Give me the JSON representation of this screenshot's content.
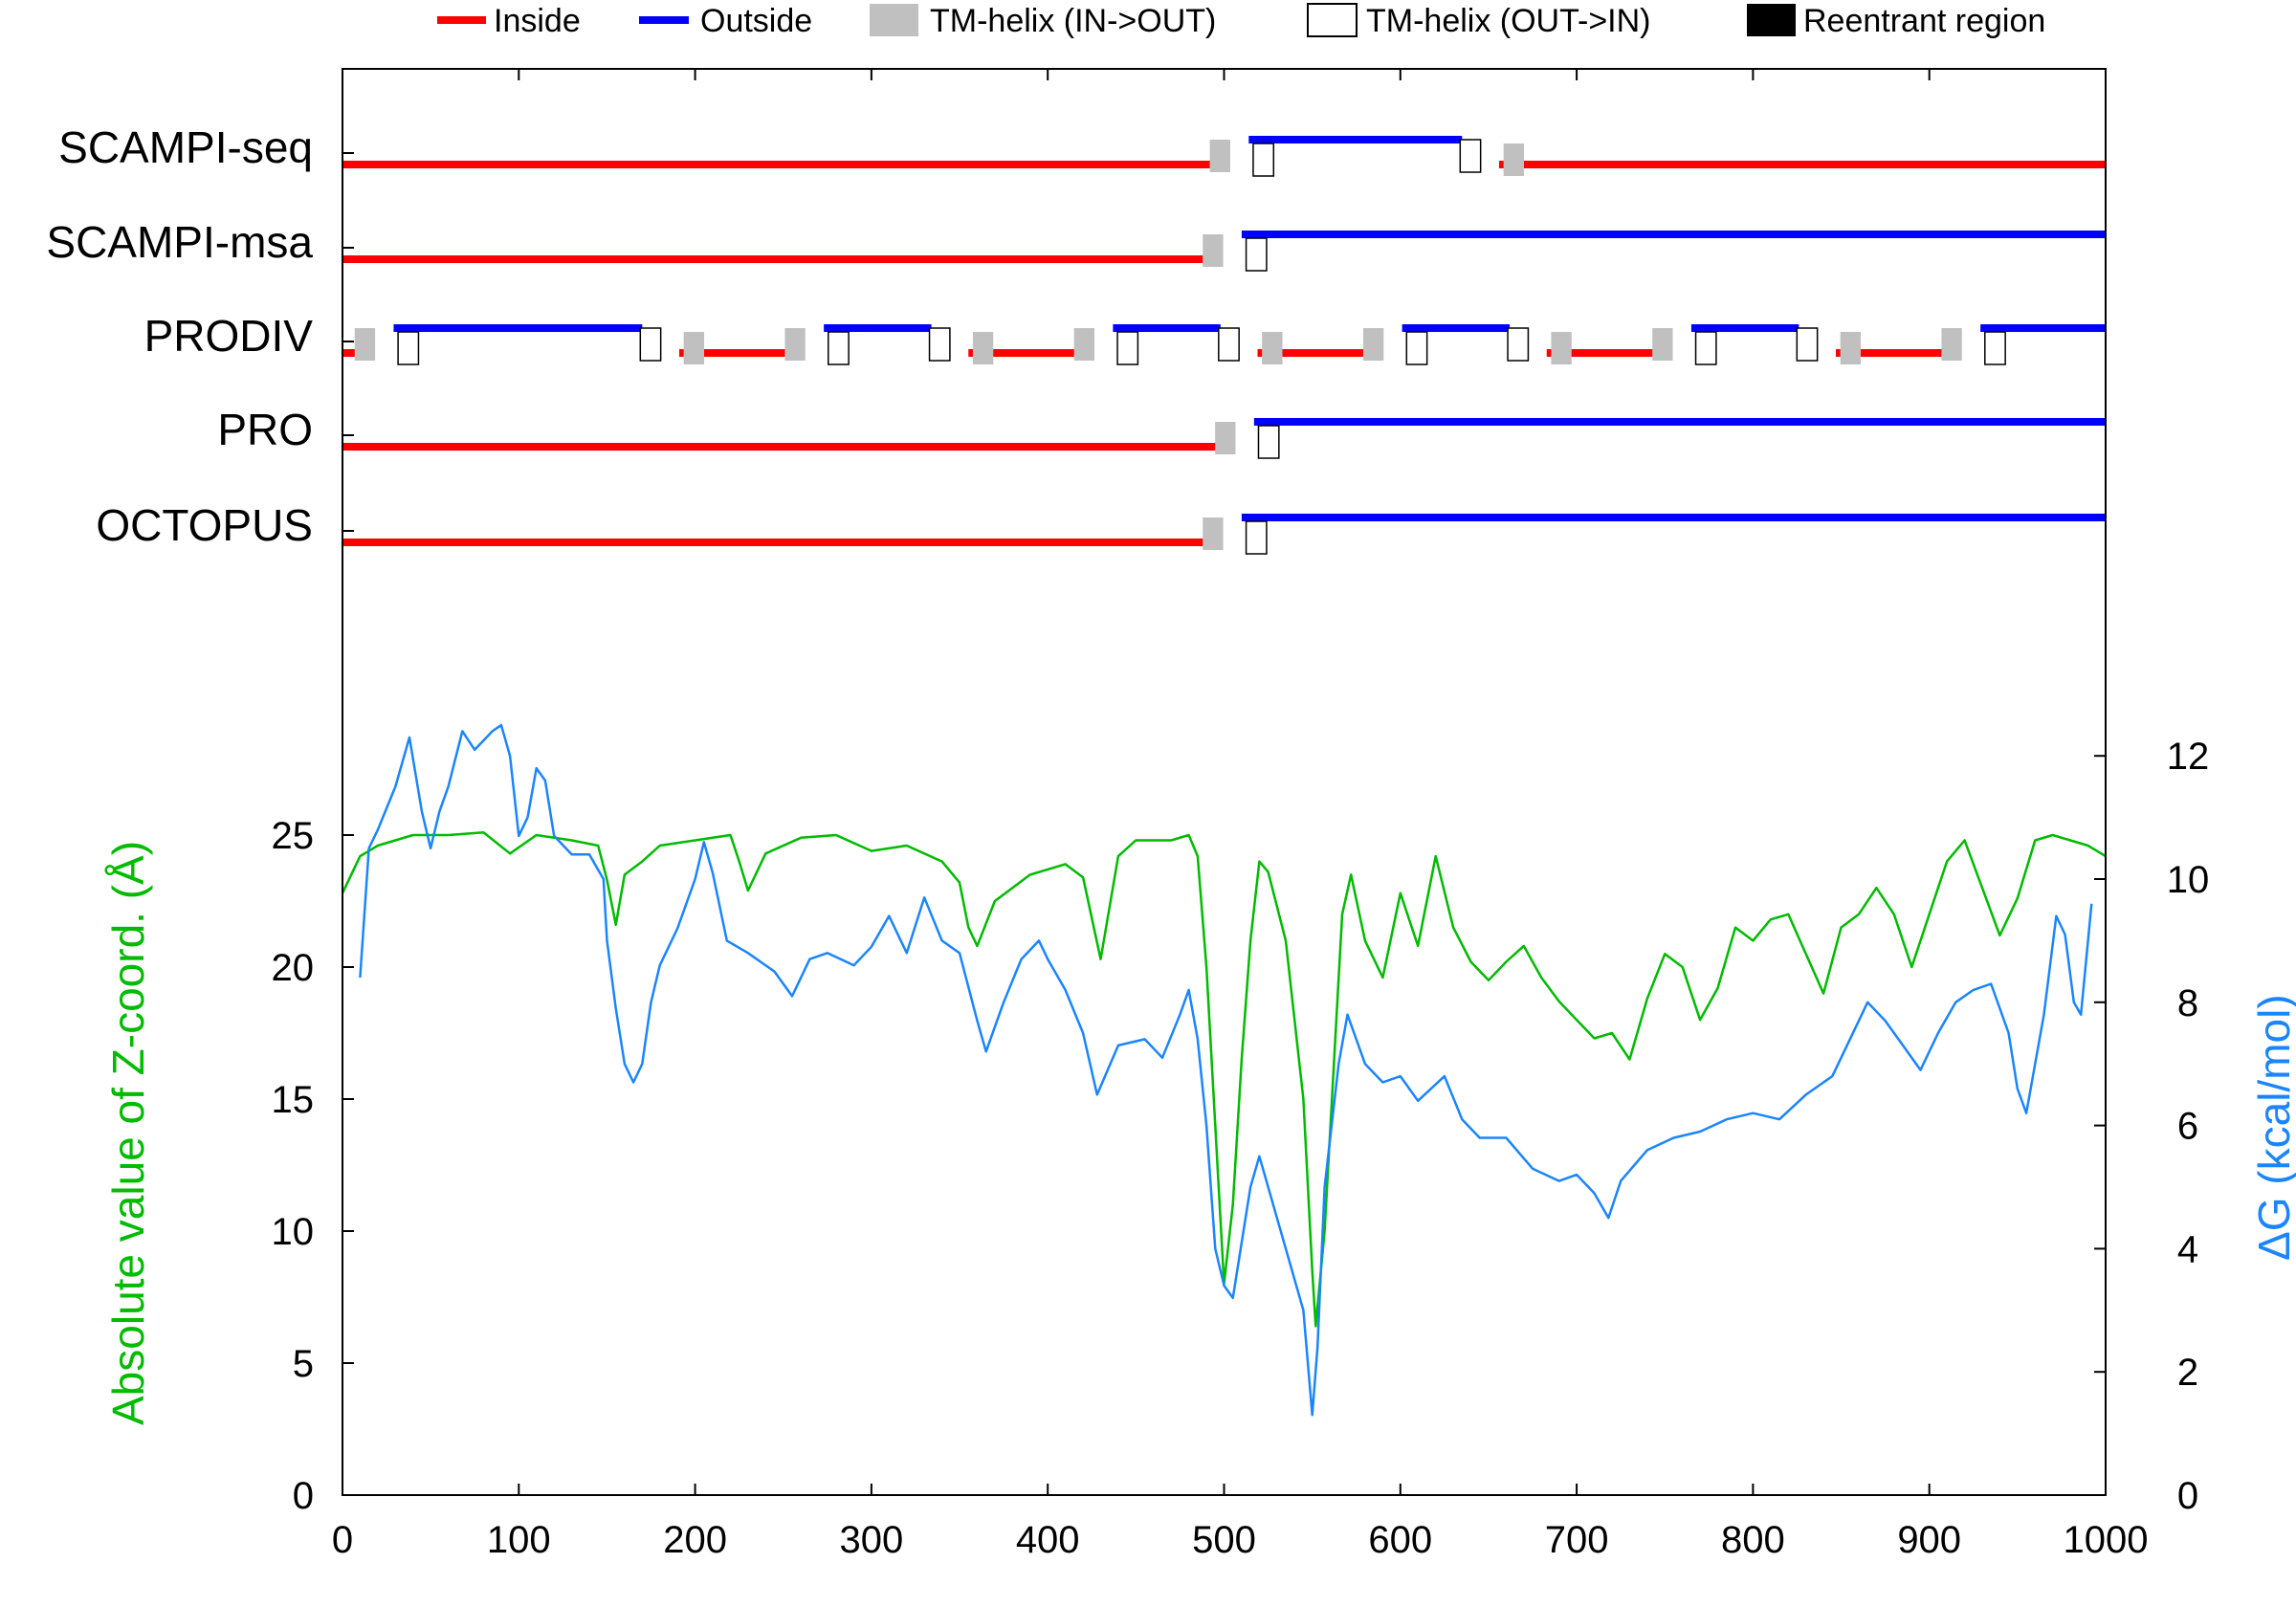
{
  "chart_data": {
    "type": "line",
    "legend": {
      "position": "top",
      "items": [
        {
          "label": "Inside",
          "kind": "line",
          "color": "#ff0000"
        },
        {
          "label": "Outside",
          "kind": "line",
          "color": "#0000ff"
        },
        {
          "label": "TM-helix (IN->OUT)",
          "kind": "box",
          "fill": "#c0c0c0"
        },
        {
          "label": "TM-helix (OUT->IN)",
          "kind": "box",
          "fill": "#ffffff"
        },
        {
          "label": "Reentrant region",
          "kind": "box",
          "fill": "#000000"
        }
      ]
    },
    "colors": {
      "inside": "#ff0000",
      "outside": "#0000ff",
      "tm_in_out": "#c0c0c0",
      "tm_out_in": "#ffffff",
      "zcoord": "#00bb00",
      "dg": "#1a85ff"
    },
    "topology": [
      {
        "method": "SCAMPI-seq",
        "start_side": "inside",
        "helices": [
          [
            493,
            514
          ],
          [
            635,
            656
          ]
        ]
      },
      {
        "method": "SCAMPI-msa",
        "start_side": "inside",
        "helices": [
          [
            489,
            510
          ]
        ]
      },
      {
        "method": "PRODIV",
        "start_side": "inside",
        "helices": [
          [
            8,
            29
          ],
          [
            170,
            191
          ],
          [
            252,
            273
          ],
          [
            334,
            355
          ],
          [
            416,
            437
          ],
          [
            498,
            519
          ],
          [
            580,
            601
          ],
          [
            662,
            683
          ],
          [
            744,
            765
          ],
          [
            826,
            847
          ],
          [
            908,
            929
          ]
        ]
      },
      {
        "method": "PRO",
        "start_side": "inside",
        "helices": [
          [
            496,
            517
          ]
        ]
      },
      {
        "method": "OCTOPUS",
        "start_side": "inside",
        "helices": [
          [
            489,
            510
          ]
        ]
      }
    ],
    "x_range": [
      0,
      1000
    ],
    "xticks": [
      0,
      100,
      200,
      300,
      400,
      500,
      600,
      700,
      800,
      900,
      1000
    ],
    "y_left": {
      "label": "Absolute value of Z-coord. (Å)",
      "range": [
        0,
        28
      ],
      "ticks": [
        0,
        5,
        10,
        15,
        20,
        25
      ]
    },
    "y_right": {
      "label": "ΔG (kcal/mol)",
      "range": [
        0,
        14
      ],
      "ticks": [
        0,
        2,
        4,
        6,
        8,
        10,
        12
      ]
    },
    "series": [
      {
        "axis": "left",
        "points": [
          [
            0,
            22.8
          ],
          [
            10,
            24.2
          ],
          [
            20,
            24.6
          ],
          [
            30,
            24.8
          ],
          [
            40,
            25.0
          ],
          [
            60,
            25.0
          ],
          [
            80,
            25.1
          ],
          [
            95,
            24.3
          ],
          [
            110,
            25.0
          ],
          [
            130,
            24.8
          ],
          [
            145,
            24.6
          ],
          [
            150,
            23.3
          ],
          [
            155,
            21.6
          ],
          [
            160,
            23.5
          ],
          [
            170,
            24.0
          ],
          [
            180,
            24.6
          ],
          [
            200,
            24.8
          ],
          [
            220,
            25.0
          ],
          [
            225,
            24.0
          ],
          [
            230,
            22.9
          ],
          [
            240,
            24.3
          ],
          [
            260,
            24.9
          ],
          [
            280,
            25.0
          ],
          [
            300,
            24.4
          ],
          [
            320,
            24.6
          ],
          [
            340,
            24.0
          ],
          [
            350,
            23.2
          ],
          [
            355,
            21.5
          ],
          [
            360,
            20.8
          ],
          [
            370,
            22.5
          ],
          [
            390,
            23.5
          ],
          [
            410,
            23.9
          ],
          [
            420,
            23.4
          ],
          [
            430,
            20.3
          ],
          [
            440,
            24.2
          ],
          [
            450,
            24.8
          ],
          [
            470,
            24.8
          ],
          [
            480,
            25.0
          ],
          [
            485,
            24.2
          ],
          [
            490,
            20.0
          ],
          [
            495,
            14.0
          ],
          [
            500,
            8.0
          ],
          [
            505,
            11.0
          ],
          [
            510,
            16.5
          ],
          [
            515,
            21.0
          ],
          [
            520,
            24.0
          ],
          [
            525,
            23.6
          ],
          [
            535,
            21.0
          ],
          [
            545,
            15.0
          ],
          [
            550,
            8.5
          ],
          [
            552,
            6.4
          ],
          [
            557,
            10.0
          ],
          [
            562,
            16.0
          ],
          [
            567,
            22.0
          ],
          [
            572,
            23.5
          ],
          [
            580,
            21.0
          ],
          [
            590,
            19.6
          ],
          [
            600,
            22.8
          ],
          [
            610,
            20.8
          ],
          [
            620,
            24.2
          ],
          [
            630,
            21.5
          ],
          [
            640,
            20.2
          ],
          [
            650,
            19.5
          ],
          [
            660,
            20.2
          ],
          [
            670,
            20.8
          ],
          [
            680,
            19.6
          ],
          [
            690,
            18.7
          ],
          [
            700,
            18.0
          ],
          [
            710,
            17.3
          ],
          [
            720,
            17.5
          ],
          [
            730,
            16.5
          ],
          [
            740,
            18.8
          ],
          [
            750,
            20.5
          ],
          [
            760,
            20.0
          ],
          [
            770,
            18.0
          ],
          [
            780,
            19.2
          ],
          [
            790,
            21.5
          ],
          [
            800,
            21.0
          ],
          [
            810,
            21.8
          ],
          [
            820,
            22.0
          ],
          [
            830,
            20.5
          ],
          [
            840,
            19.0
          ],
          [
            850,
            21.5
          ],
          [
            860,
            22.0
          ],
          [
            870,
            23.0
          ],
          [
            880,
            22.0
          ],
          [
            890,
            20.0
          ],
          [
            900,
            22.0
          ],
          [
            910,
            24.0
          ],
          [
            920,
            24.8
          ],
          [
            930,
            23.0
          ],
          [
            940,
            21.2
          ],
          [
            950,
            22.6
          ],
          [
            960,
            24.8
          ],
          [
            970,
            25.0
          ],
          [
            980,
            24.8
          ],
          [
            990,
            24.6
          ],
          [
            1000,
            24.2
          ]
        ]
      },
      {
        "axis": "right",
        "points": [
          [
            10,
            8.4
          ],
          [
            15,
            10.5
          ],
          [
            20,
            10.8
          ],
          [
            30,
            11.5
          ],
          [
            38,
            12.3
          ],
          [
            45,
            11.1
          ],
          [
            50,
            10.5
          ],
          [
            55,
            11.1
          ],
          [
            60,
            11.5
          ],
          [
            68,
            12.4
          ],
          [
            75,
            12.1
          ],
          [
            85,
            12.4
          ],
          [
            90,
            12.5
          ],
          [
            95,
            12.0
          ],
          [
            100,
            10.7
          ],
          [
            105,
            11.0
          ],
          [
            110,
            11.8
          ],
          [
            115,
            11.6
          ],
          [
            120,
            10.7
          ],
          [
            130,
            10.4
          ],
          [
            140,
            10.4
          ],
          [
            148,
            10.0
          ],
          [
            150,
            9.0
          ],
          [
            155,
            7.9
          ],
          [
            160,
            7.0
          ],
          [
            165,
            6.7
          ],
          [
            170,
            7.0
          ],
          [
            175,
            8.0
          ],
          [
            180,
            8.6
          ],
          [
            190,
            9.2
          ],
          [
            200,
            10.0
          ],
          [
            205,
            10.6
          ],
          [
            210,
            10.1
          ],
          [
            218,
            9.0
          ],
          [
            230,
            8.8
          ],
          [
            245,
            8.5
          ],
          [
            255,
            8.1
          ],
          [
            265,
            8.7
          ],
          [
            275,
            8.8
          ],
          [
            290,
            8.6
          ],
          [
            300,
            8.9
          ],
          [
            310,
            9.4
          ],
          [
            320,
            8.8
          ],
          [
            330,
            9.7
          ],
          [
            340,
            9.0
          ],
          [
            350,
            8.8
          ],
          [
            360,
            7.7
          ],
          [
            365,
            7.2
          ],
          [
            375,
            8.0
          ],
          [
            385,
            8.7
          ],
          [
            395,
            9.0
          ],
          [
            400,
            8.7
          ],
          [
            410,
            8.2
          ],
          [
            420,
            7.5
          ],
          [
            428,
            6.5
          ],
          [
            440,
            7.3
          ],
          [
            455,
            7.4
          ],
          [
            465,
            7.1
          ],
          [
            475,
            7.8
          ],
          [
            480,
            8.2
          ],
          [
            485,
            7.4
          ],
          [
            490,
            6.0
          ],
          [
            495,
            4.0
          ],
          [
            500,
            3.4
          ],
          [
            505,
            3.2
          ],
          [
            510,
            4.1
          ],
          [
            515,
            5.0
          ],
          [
            520,
            5.5
          ],
          [
            525,
            5.0
          ],
          [
            535,
            4.0
          ],
          [
            545,
            3.0
          ],
          [
            550,
            1.3
          ],
          [
            553,
            2.4
          ],
          [
            557,
            5.0
          ],
          [
            565,
            7.0
          ],
          [
            570,
            7.8
          ],
          [
            575,
            7.4
          ],
          [
            580,
            7.0
          ],
          [
            590,
            6.7
          ],
          [
            600,
            6.8
          ],
          [
            610,
            6.4
          ],
          [
            625,
            6.8
          ],
          [
            635,
            6.1
          ],
          [
            645,
            5.8
          ],
          [
            660,
            5.8
          ],
          [
            675,
            5.3
          ],
          [
            690,
            5.1
          ],
          [
            700,
            5.2
          ],
          [
            710,
            4.9
          ],
          [
            718,
            4.5
          ],
          [
            725,
            5.1
          ],
          [
            740,
            5.6
          ],
          [
            755,
            5.8
          ],
          [
            770,
            5.9
          ],
          [
            785,
            6.1
          ],
          [
            800,
            6.2
          ],
          [
            815,
            6.1
          ],
          [
            830,
            6.5
          ],
          [
            845,
            6.8
          ],
          [
            855,
            7.4
          ],
          [
            865,
            8.0
          ],
          [
            875,
            7.7
          ],
          [
            885,
            7.3
          ],
          [
            895,
            6.9
          ],
          [
            905,
            7.5
          ],
          [
            915,
            8.0
          ],
          [
            925,
            8.2
          ],
          [
            935,
            8.3
          ],
          [
            945,
            7.5
          ],
          [
            950,
            6.6
          ],
          [
            955,
            6.2
          ],
          [
            965,
            7.8
          ],
          [
            972,
            9.4
          ],
          [
            977,
            9.1
          ],
          [
            982,
            8.0
          ],
          [
            986,
            7.8
          ],
          [
            992,
            9.6
          ]
        ]
      }
    ]
  }
}
